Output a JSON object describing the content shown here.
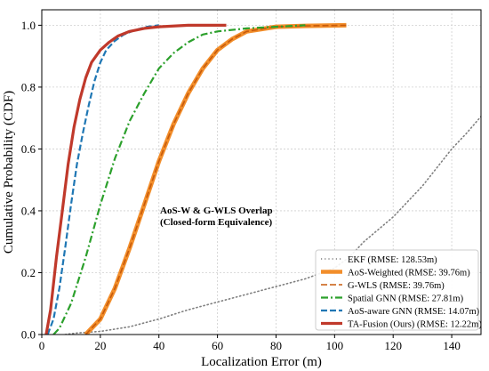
{
  "chart_data": {
    "type": "line",
    "title": "",
    "xlabel": "Localization Error (m)",
    "ylabel": "Cumulative Probability (CDF)",
    "xlim": [
      0,
      150
    ],
    "ylim": [
      0,
      1.05
    ],
    "xticks": [
      0,
      20,
      40,
      60,
      80,
      100,
      120,
      140
    ],
    "yticks": [
      0.0,
      0.2,
      0.4,
      0.6,
      0.8,
      1.0
    ],
    "xtick_labels": [
      "0",
      "20",
      "40",
      "60",
      "80",
      "100",
      "120",
      "140"
    ],
    "ytick_labels": [
      "0.0",
      "0.2",
      "0.4",
      "0.6",
      "0.8",
      "1.0"
    ],
    "grid": true,
    "legend_position": "lower-right",
    "annotation_lines": [
      "AoS-W & G-WLS Overlap",
      "(Closed-form Equivalence)"
    ],
    "series": [
      {
        "name": "EKF (RMSE: 128.53m)",
        "color": "#7f7f7f",
        "style": "dotted",
        "width": 1.6,
        "points": [
          [
            8,
            0
          ],
          [
            12,
            0.005
          ],
          [
            20,
            0.01
          ],
          [
            30,
            0.025
          ],
          [
            40,
            0.05
          ],
          [
            50,
            0.08
          ],
          [
            60,
            0.105
          ],
          [
            70,
            0.13
          ],
          [
            80,
            0.155
          ],
          [
            90,
            0.18
          ],
          [
            100,
            0.215
          ],
          [
            105,
            0.25
          ],
          [
            110,
            0.3
          ],
          [
            120,
            0.38
          ],
          [
            130,
            0.48
          ],
          [
            140,
            0.6
          ],
          [
            145,
            0.65
          ],
          [
            150,
            0.705
          ]
        ]
      },
      {
        "name": "AoS-Weighted (RMSE: 39.76m)",
        "color": "#f28e2b",
        "style": "solid",
        "width": 5,
        "points": [
          [
            15,
            0
          ],
          [
            17,
            0.02
          ],
          [
            20,
            0.05
          ],
          [
            25,
            0.15
          ],
          [
            30,
            0.28
          ],
          [
            35,
            0.42
          ],
          [
            40,
            0.56
          ],
          [
            45,
            0.68
          ],
          [
            50,
            0.78
          ],
          [
            55,
            0.86
          ],
          [
            60,
            0.92
          ],
          [
            65,
            0.955
          ],
          [
            70,
            0.98
          ],
          [
            80,
            0.995
          ],
          [
            90,
            0.998
          ],
          [
            104,
            1.0
          ]
        ]
      },
      {
        "name": "G-WLS (RMSE: 39.76m)",
        "color": "#c75a0b",
        "style": "dashed",
        "width": 1.6,
        "points": [
          [
            15,
            0
          ],
          [
            17,
            0.02
          ],
          [
            20,
            0.05
          ],
          [
            25,
            0.15
          ],
          [
            30,
            0.28
          ],
          [
            35,
            0.42
          ],
          [
            40,
            0.56
          ],
          [
            45,
            0.68
          ],
          [
            50,
            0.78
          ],
          [
            55,
            0.86
          ],
          [
            60,
            0.92
          ],
          [
            65,
            0.955
          ],
          [
            70,
            0.98
          ],
          [
            80,
            0.995
          ],
          [
            90,
            0.998
          ],
          [
            104,
            1.0
          ]
        ]
      },
      {
        "name": "Spatial GNN (RMSE: 27.81m)",
        "color": "#2ca02c",
        "style": "dashdot",
        "width": 2.2,
        "points": [
          [
            4,
            0
          ],
          [
            6,
            0.02
          ],
          [
            10,
            0.1
          ],
          [
            15,
            0.25
          ],
          [
            20,
            0.42
          ],
          [
            25,
            0.57
          ],
          [
            30,
            0.69
          ],
          [
            35,
            0.78
          ],
          [
            40,
            0.86
          ],
          [
            45,
            0.91
          ],
          [
            50,
            0.945
          ],
          [
            55,
            0.97
          ],
          [
            60,
            0.98
          ],
          [
            70,
            0.99
          ],
          [
            80,
            0.995
          ],
          [
            90,
            1.0
          ]
        ]
      },
      {
        "name": "AoS-aware GNN (RMSE: 14.07m)",
        "color": "#1f77b4",
        "style": "dashed",
        "width": 2.2,
        "points": [
          [
            2,
            0
          ],
          [
            4,
            0.05
          ],
          [
            6,
            0.15
          ],
          [
            8,
            0.28
          ],
          [
            10,
            0.42
          ],
          [
            12,
            0.55
          ],
          [
            14,
            0.65
          ],
          [
            16,
            0.74
          ],
          [
            18,
            0.82
          ],
          [
            20,
            0.88
          ],
          [
            22,
            0.92
          ],
          [
            25,
            0.95
          ],
          [
            28,
            0.97
          ],
          [
            32,
            0.985
          ],
          [
            36,
            0.995
          ],
          [
            40,
            1.0
          ]
        ]
      },
      {
        "name": "TA-Fusion (Ours) (RMSE: 12.22m)",
        "color": "#c0392b",
        "style": "solid",
        "width": 3.2,
        "points": [
          [
            1.5,
            0
          ],
          [
            3,
            0.08
          ],
          [
            5,
            0.25
          ],
          [
            7,
            0.4
          ],
          [
            9,
            0.55
          ],
          [
            11,
            0.67
          ],
          [
            13,
            0.76
          ],
          [
            15,
            0.83
          ],
          [
            17,
            0.88
          ],
          [
            20,
            0.92
          ],
          [
            23,
            0.945
          ],
          [
            26,
            0.965
          ],
          [
            30,
            0.98
          ],
          [
            35,
            0.99
          ],
          [
            40,
            0.995
          ],
          [
            50,
            1.0
          ],
          [
            63,
            1.0
          ]
        ]
      }
    ]
  }
}
